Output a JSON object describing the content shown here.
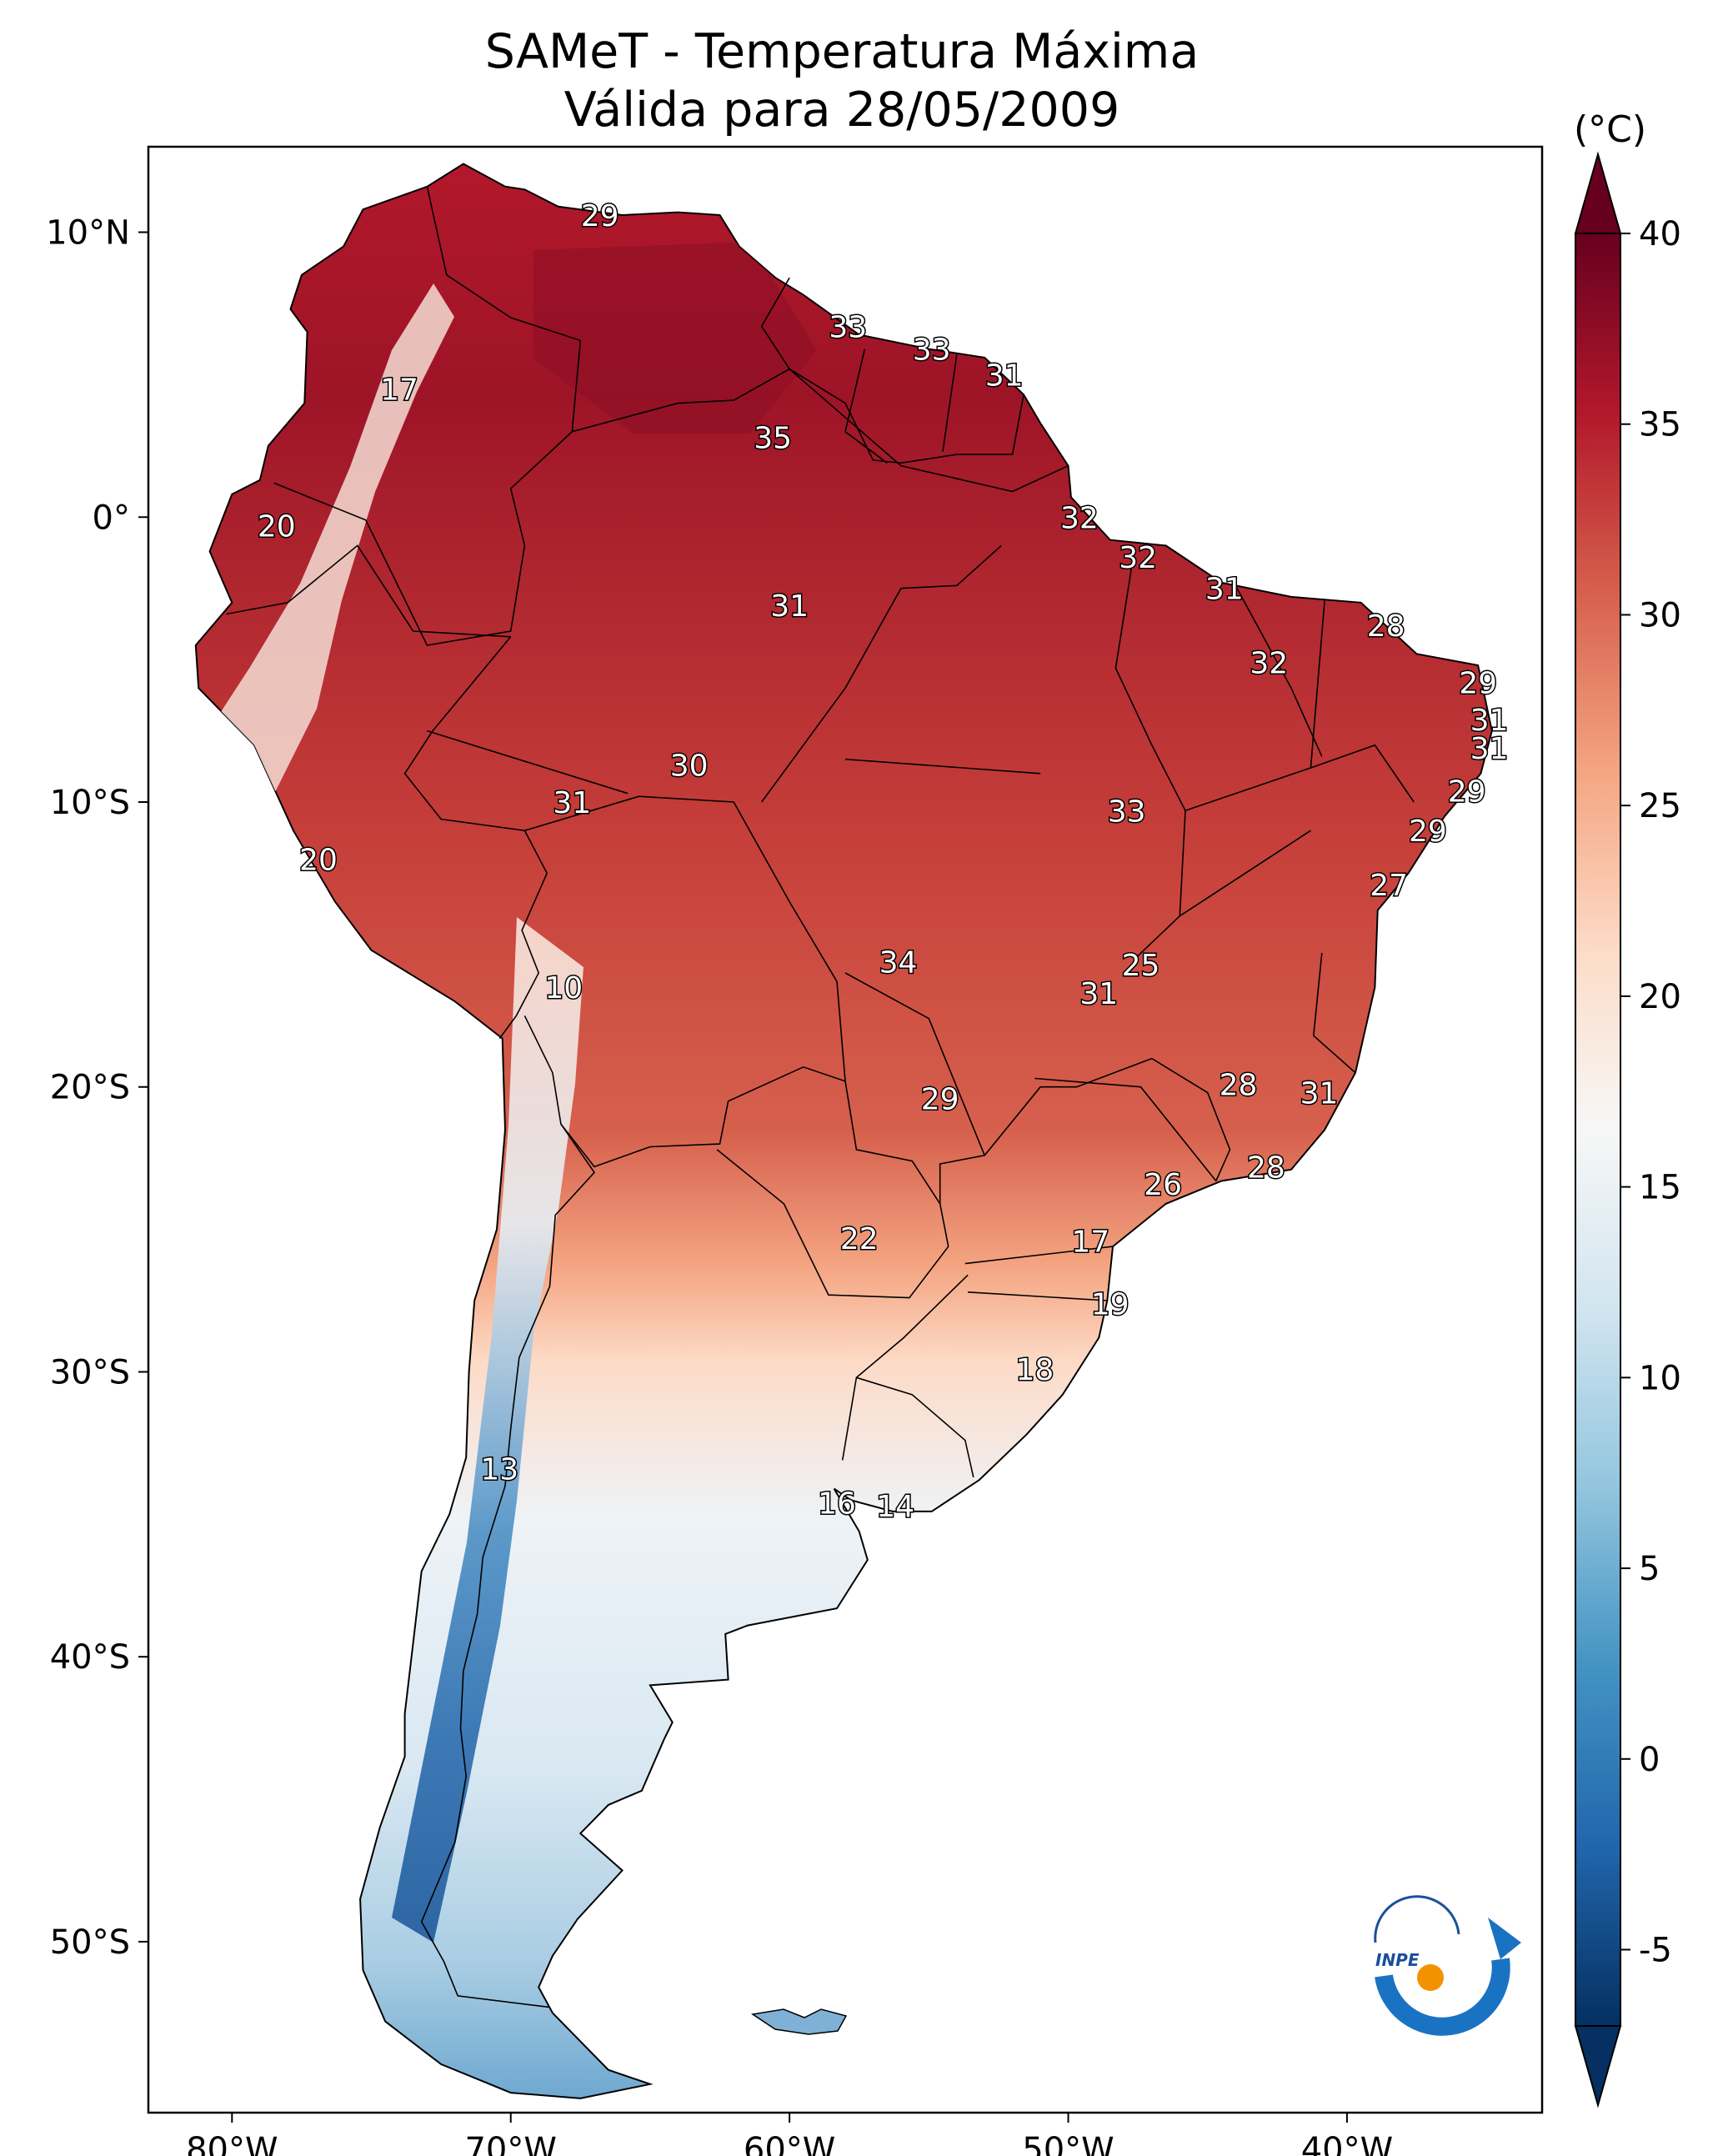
{
  "title": {
    "line1": "SAMeT - Temperatura Máxima",
    "line2": "Válida para 28/05/2009"
  },
  "map": {
    "lon_ticks": [
      "80°W",
      "70°W",
      "60°W",
      "50°W",
      "40°W"
    ],
    "lat_ticks": [
      "10°N",
      "0°",
      "10°S",
      "20°S",
      "30°S",
      "40°S",
      "50°S"
    ],
    "extent": {
      "lon_min": -83,
      "lon_max": -33,
      "lat_min": -56,
      "lat_max": 13
    }
  },
  "colorbar": {
    "unit": "(°C)",
    "ticks": [
      "40",
      "35",
      "30",
      "25",
      "20",
      "15",
      "10",
      "5",
      "0",
      "-5"
    ],
    "min": -7,
    "max": 40,
    "colors": [
      "#053061",
      "#2166ac",
      "#4393c3",
      "#92c5de",
      "#d1e5f0",
      "#f7f7f7",
      "#fddbc7",
      "#f4a582",
      "#d6604d",
      "#b2182b",
      "#67001f"
    ]
  },
  "logo": {
    "text": "INPE"
  },
  "station_labels": [
    {
      "text": "29",
      "lon": -66.8,
      "lat": 10.6
    },
    {
      "text": "33",
      "lon": -57.9,
      "lat": 6.7
    },
    {
      "text": "33",
      "lon": -54.9,
      "lat": 5.9
    },
    {
      "text": "31",
      "lon": -52.3,
      "lat": 5.0
    },
    {
      "text": "17",
      "lon": -74.0,
      "lat": 4.5
    },
    {
      "text": "35",
      "lon": -60.6,
      "lat": 2.8
    },
    {
      "text": "32",
      "lon": -49.6,
      "lat": 0.0
    },
    {
      "text": "20",
      "lon": -78.4,
      "lat": -0.3
    },
    {
      "text": "32",
      "lon": -47.5,
      "lat": -1.4
    },
    {
      "text": "31",
      "lon": -44.4,
      "lat": -2.5
    },
    {
      "text": "31",
      "lon": -60.0,
      "lat": -3.1
    },
    {
      "text": "28",
      "lon": -38.6,
      "lat": -3.8
    },
    {
      "text": "32",
      "lon": -42.8,
      "lat": -5.1
    },
    {
      "text": "29",
      "lon": -35.3,
      "lat": -5.8
    },
    {
      "text": "31",
      "lon": -34.9,
      "lat": -7.1
    },
    {
      "text": "31",
      "lon": -34.9,
      "lat": -8.1
    },
    {
      "text": "30",
      "lon": -63.6,
      "lat": -8.7
    },
    {
      "text": "29",
      "lon": -35.7,
      "lat": -9.6
    },
    {
      "text": "31",
      "lon": -67.8,
      "lat": -10.0
    },
    {
      "text": "33",
      "lon": -47.9,
      "lat": -10.3
    },
    {
      "text": "29",
      "lon": -37.1,
      "lat": -11.0
    },
    {
      "text": "20",
      "lon": -76.9,
      "lat": -12.0
    },
    {
      "text": "27",
      "lon": -38.5,
      "lat": -12.9
    },
    {
      "text": "34",
      "lon": -56.1,
      "lat": -15.6
    },
    {
      "text": "25",
      "lon": -47.4,
      "lat": -15.7
    },
    {
      "text": "31",
      "lon": -48.9,
      "lat": -16.7
    },
    {
      "text": "10",
      "lon": -68.1,
      "lat": -16.5
    },
    {
      "text": "28",
      "lon": -43.9,
      "lat": -19.9
    },
    {
      "text": "29",
      "lon": -54.6,
      "lat": -20.4
    },
    {
      "text": "31",
      "lon": -41.0,
      "lat": -20.2
    },
    {
      "text": "28",
      "lon": -42.9,
      "lat": -22.8
    },
    {
      "text": "26",
      "lon": -46.6,
      "lat": -23.4
    },
    {
      "text": "22",
      "lon": -57.5,
      "lat": -25.3
    },
    {
      "text": "17",
      "lon": -49.2,
      "lat": -25.4
    },
    {
      "text": "19",
      "lon": -48.5,
      "lat": -27.6
    },
    {
      "text": "18",
      "lon": -51.2,
      "lat": -29.9
    },
    {
      "text": "13",
      "lon": -70.4,
      "lat": -33.4
    },
    {
      "text": "16",
      "lon": -58.3,
      "lat": -34.6
    },
    {
      "text": "14",
      "lon": -56.2,
      "lat": -34.7
    }
  ]
}
